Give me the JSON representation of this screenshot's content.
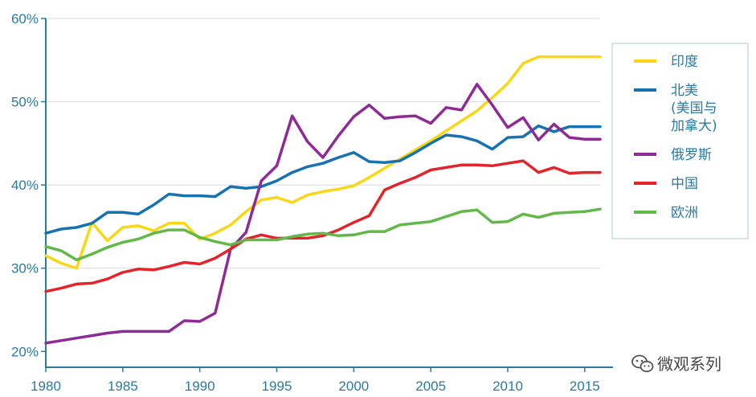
{
  "chart_data": {
    "type": "line",
    "title": "",
    "xlabel": "",
    "ylabel": "",
    "xlim": [
      1980,
      2016
    ],
    "ylim": [
      18,
      60
    ],
    "x_ticks": [
      "1980",
      "1985",
      "1990",
      "1995",
      "2000",
      "2005",
      "2010",
      "2015"
    ],
    "y_ticks": [
      "20%",
      "30%",
      "40%",
      "50%",
      "60%"
    ],
    "legend_position": "right",
    "x": [
      1980,
      1981,
      1982,
      1983,
      1984,
      1985,
      1986,
      1987,
      1988,
      1989,
      1990,
      1991,
      1992,
      1993,
      1994,
      1995,
      1996,
      1997,
      1998,
      1999,
      2000,
      2001,
      2002,
      2003,
      2004,
      2005,
      2006,
      2007,
      2008,
      2009,
      2010,
      2011,
      2012,
      2013,
      2014,
      2015,
      2016
    ],
    "series": [
      {
        "name": "印度",
        "color": "#f7d716",
        "values": [
          31.5,
          30.6,
          30.0,
          35.5,
          33.3,
          34.9,
          35.1,
          34.5,
          35.4,
          35.4,
          33.5,
          34.2,
          35.2,
          36.8,
          38.2,
          38.5,
          37.9,
          38.8,
          39.2,
          39.5,
          39.9,
          40.9,
          42.0,
          43.1,
          44.2,
          45.3,
          46.5,
          47.7,
          48.9,
          50.5,
          52.2,
          54.6,
          55.4,
          55.4,
          55.4,
          55.4,
          55.4
        ]
      },
      {
        "name": "北美\n(美国与\n加拿大)",
        "color": "#1672b0",
        "values": [
          34.2,
          34.7,
          34.9,
          35.4,
          36.7,
          36.7,
          36.5,
          37.6,
          38.9,
          38.7,
          38.7,
          38.6,
          39.8,
          39.6,
          39.8,
          40.5,
          41.5,
          42.2,
          42.6,
          43.3,
          43.9,
          42.8,
          42.7,
          42.9,
          43.9,
          45.0,
          46.0,
          45.8,
          45.3,
          44.3,
          45.7,
          45.8,
          47.1,
          46.4,
          47.0,
          47.0,
          47.0
        ]
      },
      {
        "name": "俄罗斯",
        "color": "#8e2b94",
        "values": [
          21.0,
          21.3,
          21.6,
          21.9,
          22.2,
          22.4,
          22.4,
          22.4,
          22.4,
          23.7,
          23.6,
          24.6,
          32.3,
          34.3,
          40.5,
          42.3,
          48.3,
          45.2,
          43.3,
          45.9,
          48.2,
          49.6,
          48.0,
          48.2,
          48.3,
          47.4,
          49.3,
          49.0,
          52.1,
          49.6,
          46.9,
          48.1,
          45.4,
          47.3,
          45.7,
          45.5,
          45.5
        ]
      },
      {
        "name": "中国",
        "color": "#e3242b",
        "values": [
          27.2,
          27.6,
          28.1,
          28.2,
          28.7,
          29.5,
          29.9,
          29.8,
          30.2,
          30.7,
          30.5,
          31.2,
          32.3,
          33.5,
          34.0,
          33.6,
          33.6,
          33.6,
          33.9,
          34.6,
          35.5,
          36.3,
          39.4,
          40.2,
          40.9,
          41.8,
          42.1,
          42.4,
          42.4,
          42.3,
          42.6,
          42.9,
          41.5,
          42.1,
          41.4,
          41.5,
          41.5
        ]
      },
      {
        "name": "欧洲",
        "color": "#62b848",
        "values": [
          32.6,
          32.1,
          31.0,
          31.7,
          32.5,
          33.1,
          33.5,
          34.2,
          34.6,
          34.6,
          33.7,
          33.2,
          32.8,
          33.4,
          33.4,
          33.4,
          33.8,
          34.1,
          34.2,
          33.9,
          34.0,
          34.4,
          34.4,
          35.2,
          35.4,
          35.6,
          36.2,
          36.8,
          37.0,
          35.5,
          35.6,
          36.5,
          36.1,
          36.6,
          36.7,
          36.8,
          37.1
        ]
      }
    ]
  },
  "watermark": {
    "text": "微观系列",
    "icon": "wechat-icon"
  }
}
